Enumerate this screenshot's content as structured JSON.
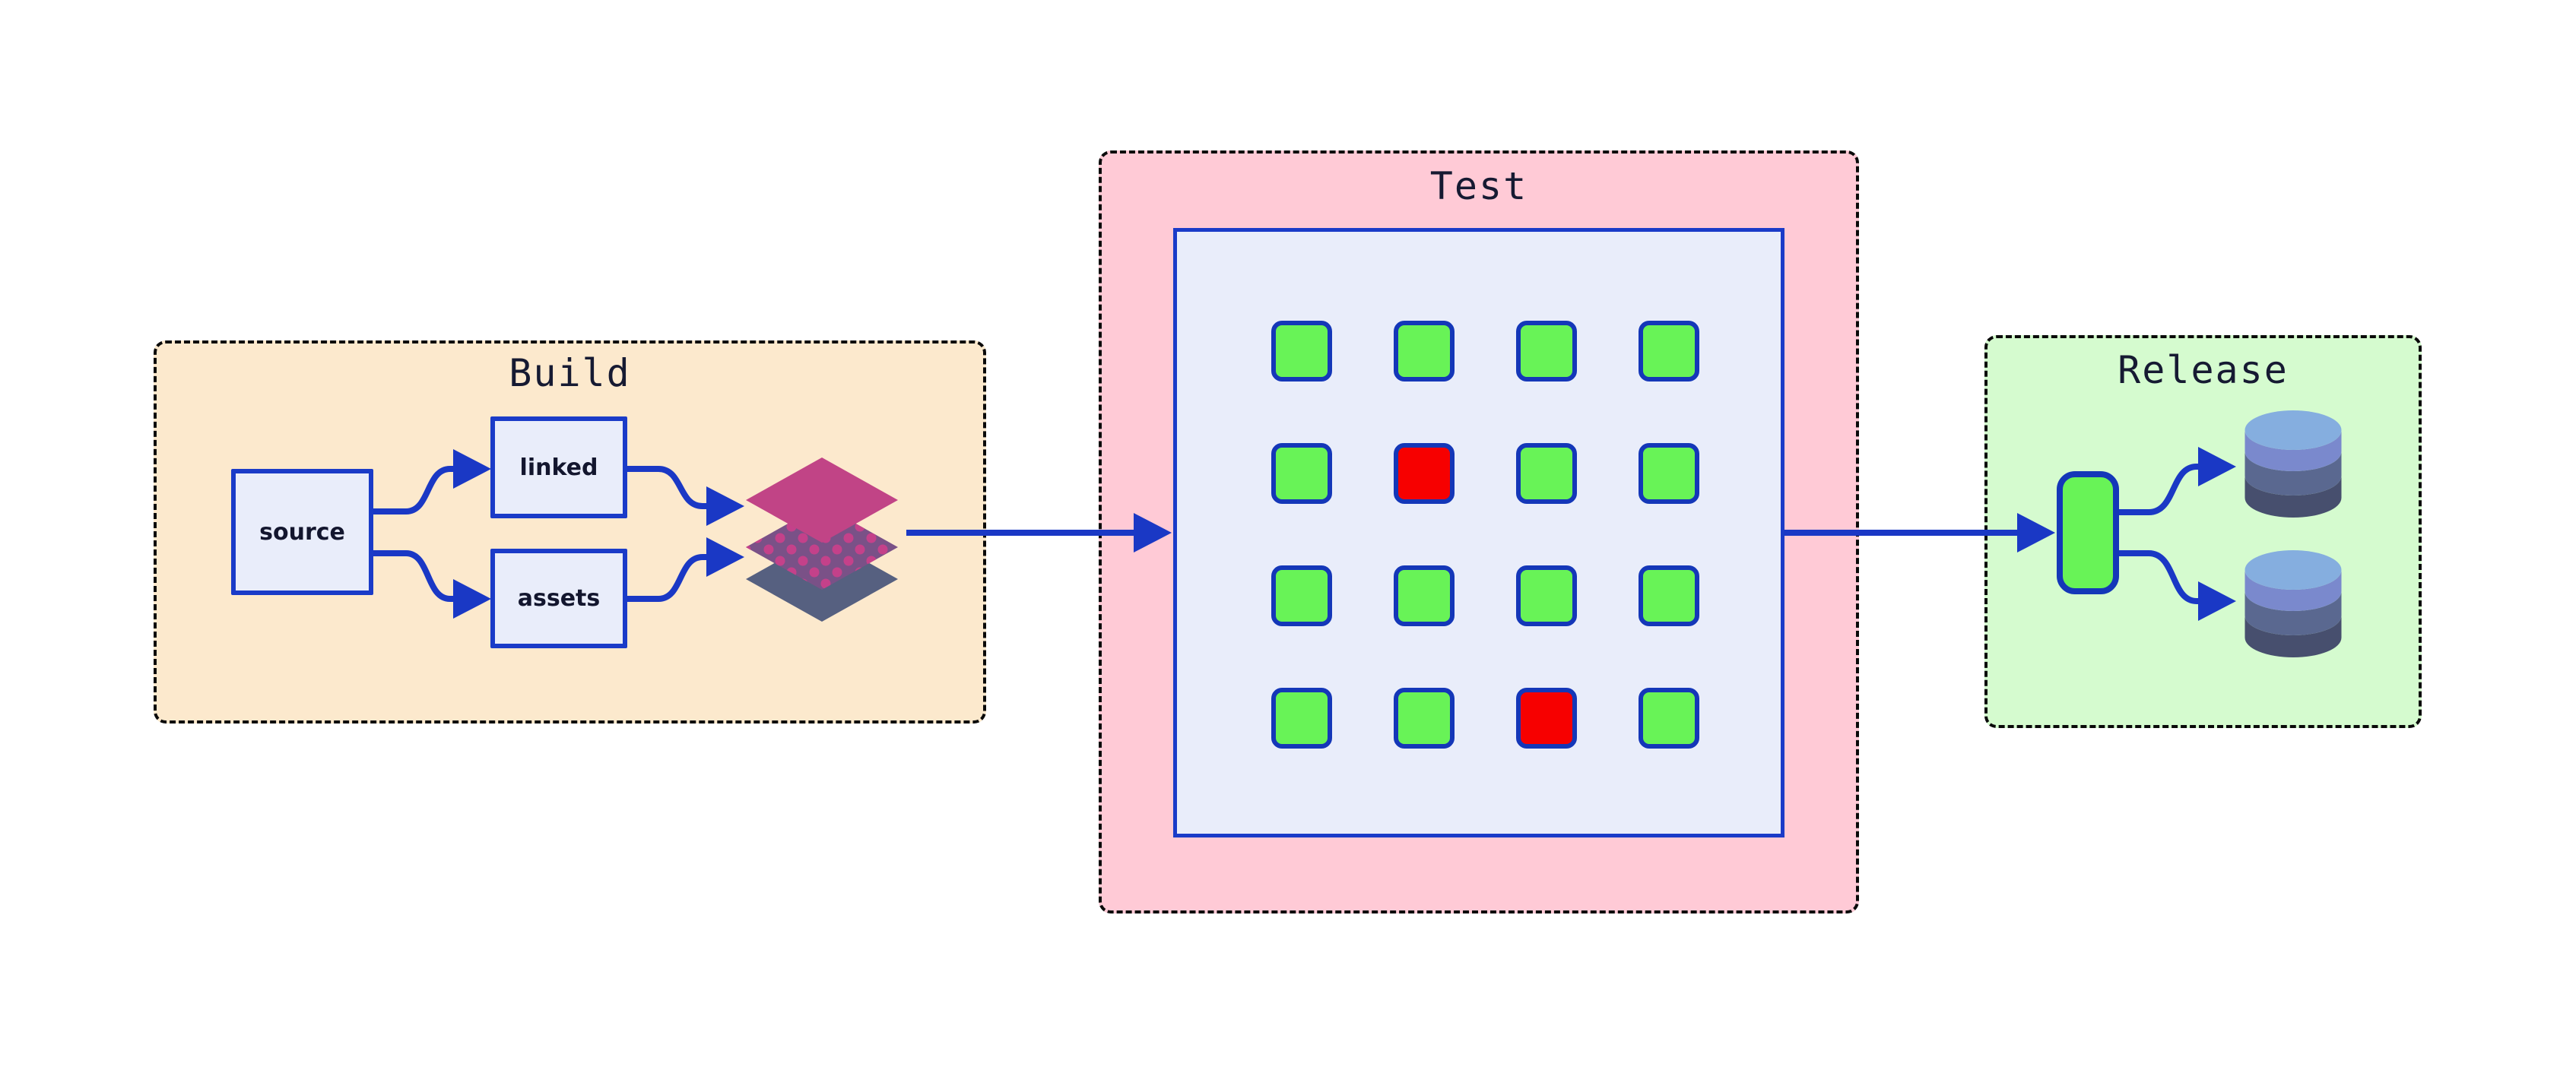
{
  "diagram": {
    "background_color": "#ffffff",
    "arrow_color": "#1a38c5",
    "node_fill": "#e9edfa",
    "node_border": "#1a3bc8",
    "title_color": "#161a32"
  },
  "build": {
    "title": "Build",
    "bg_color": "#fce9cd",
    "nodes": {
      "source": {
        "label": "source"
      },
      "linked": {
        "label": "linked"
      },
      "assets": {
        "label": "assets"
      }
    },
    "layer_stack_icon": {
      "top_color": "#c14486",
      "middle_color": "#7a5187",
      "middle_dot_color": "#c4418a",
      "bottom_color": "#566080"
    }
  },
  "test": {
    "title": "Test",
    "bg_color": "#ffcad6",
    "grid": {
      "rows": 4,
      "cols": 4,
      "pass_color": "#68f357",
      "fail_color": "#f70000",
      "cells": [
        "pass",
        "pass",
        "pass",
        "pass",
        "pass",
        "fail",
        "pass",
        "pass",
        "pass",
        "pass",
        "pass",
        "pass",
        "pass",
        "pass",
        "fail",
        "pass"
      ]
    }
  },
  "release": {
    "title": "Release",
    "bg_color": "#d5fbcf",
    "artifact_color": "#68f357",
    "database_icon_colors": {
      "top": "#85aedf",
      "band1": "#7a89cd",
      "band2": "#5a6890",
      "band3": "#474f6e"
    },
    "database_count": 2
  }
}
